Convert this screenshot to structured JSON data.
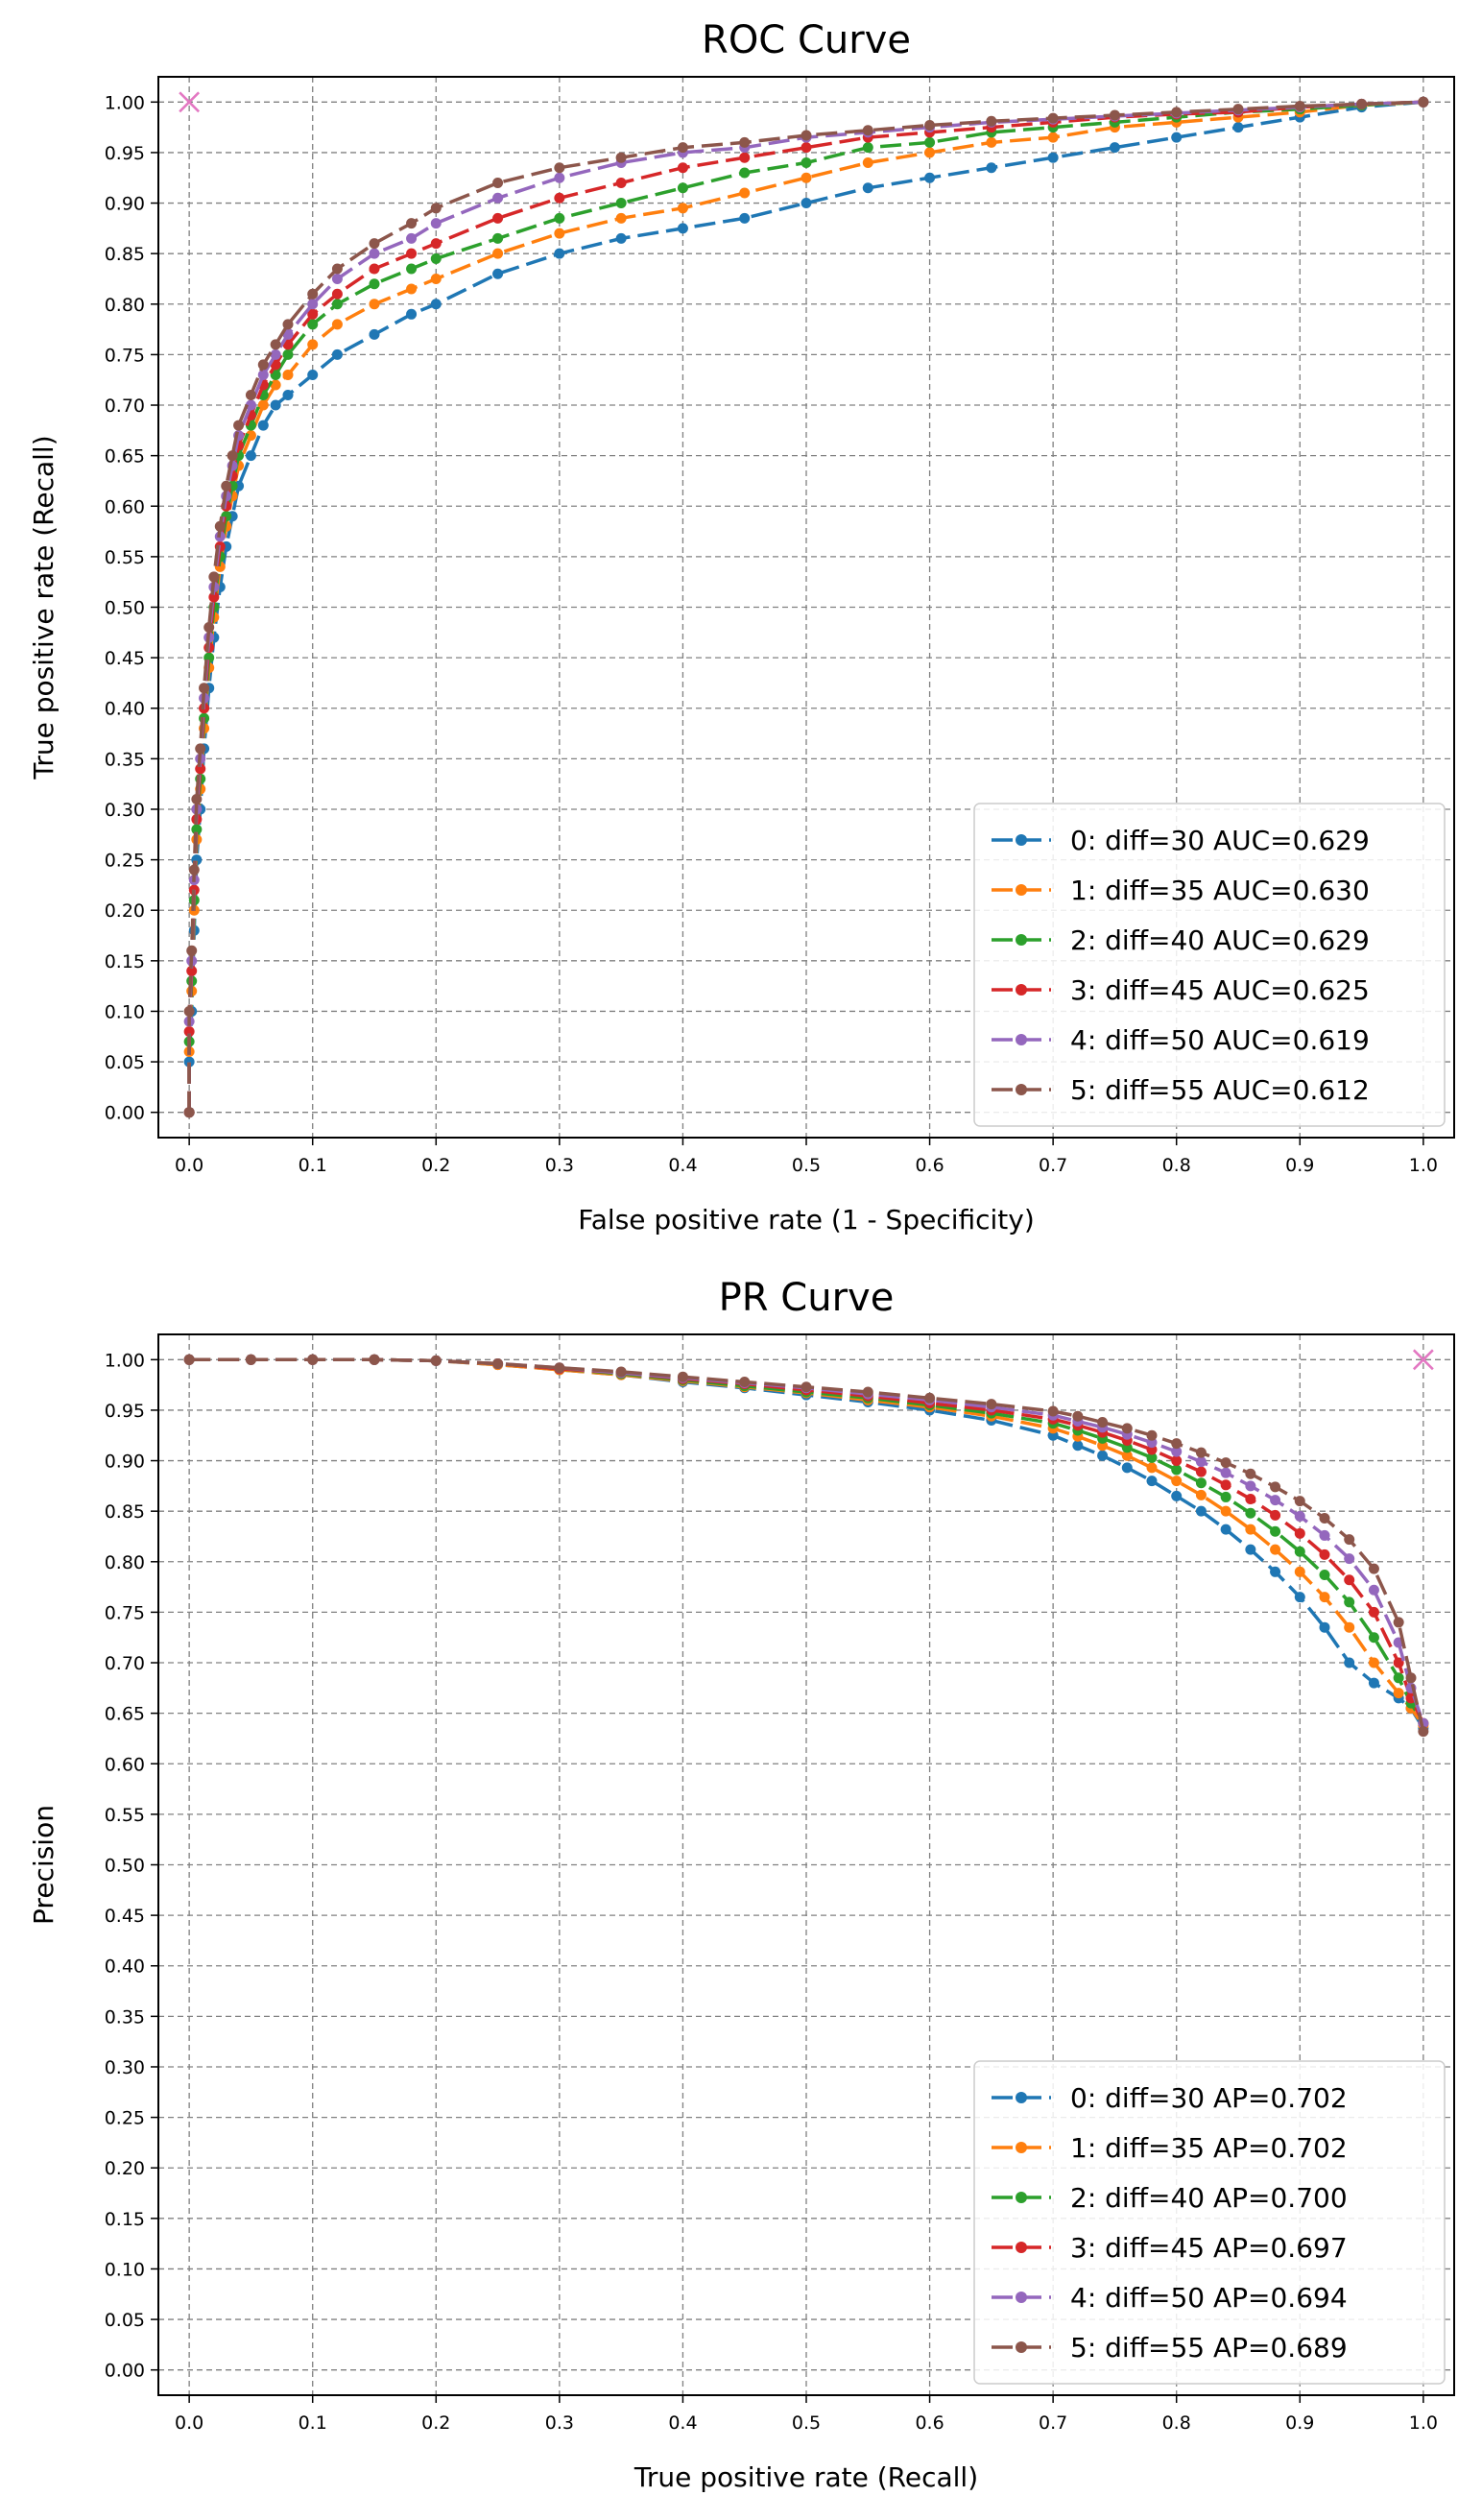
{
  "chart_data": [
    {
      "type": "line",
      "title": "ROC Curve",
      "xlabel": "False positive rate (1 - Specificity)",
      "ylabel": "True positive rate (Recall)",
      "xlim": [
        -0.025,
        1.025
      ],
      "ylim": [
        -0.025,
        1.025
      ],
      "xticks": [
        "0.0",
        "0.1",
        "0.2",
        "0.3",
        "0.4",
        "0.5",
        "0.6",
        "0.7",
        "0.8",
        "0.9",
        "1.0"
      ],
      "yticks": [
        "0.00",
        "0.05",
        "0.10",
        "0.15",
        "0.20",
        "0.25",
        "0.30",
        "0.35",
        "0.40",
        "0.45",
        "0.50",
        "0.55",
        "0.60",
        "0.65",
        "0.70",
        "0.75",
        "0.80",
        "0.85",
        "0.90",
        "0.95",
        "1.00"
      ],
      "grid": true,
      "legend_position": "lower-right",
      "marker": {
        "x": 0.0,
        "y": 1.0,
        "symbol": "x",
        "color": "#e377c2"
      },
      "series": [
        {
          "name": "0: diff=30 AUC=0.629",
          "color": "#1f77b4",
          "x": [
            0.0,
            0.0,
            0.002,
            0.004,
            0.006,
            0.009,
            0.012,
            0.016,
            0.02,
            0.025,
            0.03,
            0.035,
            0.04,
            0.05,
            0.06,
            0.07,
            0.08,
            0.1,
            0.12,
            0.15,
            0.18,
            0.2,
            0.25,
            0.3,
            0.35,
            0.4,
            0.45,
            0.5,
            0.55,
            0.6,
            0.65,
            0.7,
            0.75,
            0.8,
            0.85,
            0.9,
            0.95,
            1.0
          ],
          "y": [
            0.0,
            0.05,
            0.1,
            0.18,
            0.25,
            0.3,
            0.36,
            0.42,
            0.47,
            0.52,
            0.56,
            0.59,
            0.62,
            0.65,
            0.68,
            0.7,
            0.71,
            0.73,
            0.75,
            0.77,
            0.79,
            0.8,
            0.83,
            0.85,
            0.865,
            0.875,
            0.885,
            0.9,
            0.915,
            0.925,
            0.935,
            0.945,
            0.955,
            0.965,
            0.975,
            0.985,
            0.995,
            1.0
          ]
        },
        {
          "name": "1: diff=35 AUC=0.630",
          "color": "#ff7f0e",
          "x": [
            0.0,
            0.0,
            0.002,
            0.004,
            0.006,
            0.009,
            0.012,
            0.016,
            0.02,
            0.025,
            0.03,
            0.035,
            0.04,
            0.05,
            0.06,
            0.07,
            0.08,
            0.1,
            0.12,
            0.15,
            0.18,
            0.2,
            0.25,
            0.3,
            0.35,
            0.4,
            0.45,
            0.5,
            0.55,
            0.6,
            0.65,
            0.7,
            0.75,
            0.8,
            0.85,
            0.9,
            0.95,
            1.0
          ],
          "y": [
            0.0,
            0.06,
            0.12,
            0.2,
            0.27,
            0.32,
            0.38,
            0.44,
            0.49,
            0.54,
            0.58,
            0.61,
            0.64,
            0.67,
            0.7,
            0.72,
            0.73,
            0.76,
            0.78,
            0.8,
            0.815,
            0.825,
            0.85,
            0.87,
            0.885,
            0.895,
            0.91,
            0.925,
            0.94,
            0.95,
            0.96,
            0.965,
            0.975,
            0.98,
            0.985,
            0.99,
            0.997,
            1.0
          ]
        },
        {
          "name": "2: diff=40 AUC=0.629",
          "color": "#2ca02c",
          "x": [
            0.0,
            0.0,
            0.002,
            0.004,
            0.006,
            0.009,
            0.012,
            0.016,
            0.02,
            0.025,
            0.03,
            0.035,
            0.04,
            0.05,
            0.06,
            0.07,
            0.08,
            0.1,
            0.12,
            0.15,
            0.18,
            0.2,
            0.25,
            0.3,
            0.35,
            0.4,
            0.45,
            0.5,
            0.55,
            0.6,
            0.65,
            0.7,
            0.75,
            0.8,
            0.85,
            0.9,
            0.95,
            1.0
          ],
          "y": [
            0.0,
            0.07,
            0.13,
            0.21,
            0.28,
            0.33,
            0.39,
            0.45,
            0.5,
            0.55,
            0.59,
            0.62,
            0.65,
            0.68,
            0.71,
            0.73,
            0.75,
            0.78,
            0.8,
            0.82,
            0.835,
            0.845,
            0.865,
            0.885,
            0.9,
            0.915,
            0.93,
            0.94,
            0.955,
            0.96,
            0.97,
            0.975,
            0.98,
            0.985,
            0.99,
            0.993,
            0.997,
            1.0
          ]
        },
        {
          "name": "3: diff=45 AUC=0.625",
          "color": "#d62728",
          "x": [
            0.0,
            0.0,
            0.002,
            0.004,
            0.006,
            0.009,
            0.012,
            0.016,
            0.02,
            0.025,
            0.03,
            0.035,
            0.04,
            0.05,
            0.06,
            0.07,
            0.08,
            0.1,
            0.12,
            0.15,
            0.18,
            0.2,
            0.25,
            0.3,
            0.35,
            0.4,
            0.45,
            0.5,
            0.55,
            0.6,
            0.65,
            0.7,
            0.75,
            0.8,
            0.85,
            0.9,
            0.95,
            1.0
          ],
          "y": [
            0.0,
            0.08,
            0.14,
            0.22,
            0.29,
            0.34,
            0.4,
            0.46,
            0.51,
            0.56,
            0.6,
            0.63,
            0.66,
            0.69,
            0.72,
            0.74,
            0.76,
            0.79,
            0.81,
            0.835,
            0.85,
            0.86,
            0.885,
            0.905,
            0.92,
            0.935,
            0.945,
            0.955,
            0.965,
            0.97,
            0.975,
            0.98,
            0.985,
            0.988,
            0.99,
            0.995,
            0.998,
            1.0
          ]
        },
        {
          "name": "4: diff=50 AUC=0.619",
          "color": "#9467bd",
          "x": [
            0.0,
            0.0,
            0.002,
            0.004,
            0.006,
            0.009,
            0.012,
            0.016,
            0.02,
            0.025,
            0.03,
            0.035,
            0.04,
            0.05,
            0.06,
            0.07,
            0.08,
            0.1,
            0.12,
            0.15,
            0.18,
            0.2,
            0.25,
            0.3,
            0.35,
            0.4,
            0.45,
            0.5,
            0.55,
            0.6,
            0.65,
            0.7,
            0.75,
            0.8,
            0.85,
            0.9,
            0.95,
            1.0
          ],
          "y": [
            0.0,
            0.09,
            0.15,
            0.23,
            0.3,
            0.35,
            0.41,
            0.47,
            0.52,
            0.57,
            0.61,
            0.64,
            0.67,
            0.7,
            0.73,
            0.75,
            0.77,
            0.8,
            0.825,
            0.85,
            0.865,
            0.88,
            0.905,
            0.925,
            0.94,
            0.95,
            0.955,
            0.965,
            0.97,
            0.975,
            0.98,
            0.983,
            0.986,
            0.989,
            0.992,
            0.995,
            0.998,
            1.0
          ]
        },
        {
          "name": "5: diff=55 AUC=0.612",
          "color": "#8c564b",
          "x": [
            0.0,
            0.0,
            0.002,
            0.004,
            0.006,
            0.009,
            0.012,
            0.016,
            0.02,
            0.025,
            0.03,
            0.035,
            0.04,
            0.05,
            0.06,
            0.07,
            0.08,
            0.1,
            0.12,
            0.15,
            0.18,
            0.2,
            0.25,
            0.3,
            0.35,
            0.4,
            0.45,
            0.5,
            0.55,
            0.6,
            0.65,
            0.7,
            0.75,
            0.8,
            0.85,
            0.9,
            0.95,
            1.0
          ],
          "y": [
            0.0,
            0.1,
            0.16,
            0.24,
            0.31,
            0.36,
            0.42,
            0.48,
            0.53,
            0.58,
            0.62,
            0.65,
            0.68,
            0.71,
            0.74,
            0.76,
            0.78,
            0.81,
            0.835,
            0.86,
            0.88,
            0.895,
            0.92,
            0.935,
            0.945,
            0.955,
            0.96,
            0.967,
            0.972,
            0.977,
            0.981,
            0.984,
            0.987,
            0.99,
            0.993,
            0.996,
            0.998,
            1.0
          ]
        }
      ]
    },
    {
      "type": "line",
      "title": "PR Curve",
      "xlabel": "True positive rate (Recall)",
      "ylabel": "Precision",
      "xlim": [
        -0.025,
        1.025
      ],
      "ylim": [
        -0.025,
        1.025
      ],
      "xticks": [
        "0.0",
        "0.1",
        "0.2",
        "0.3",
        "0.4",
        "0.5",
        "0.6",
        "0.7",
        "0.8",
        "0.9",
        "1.0"
      ],
      "yticks": [
        "0.00",
        "0.05",
        "0.10",
        "0.15",
        "0.20",
        "0.25",
        "0.30",
        "0.35",
        "0.40",
        "0.45",
        "0.50",
        "0.55",
        "0.60",
        "0.65",
        "0.70",
        "0.75",
        "0.80",
        "0.85",
        "0.90",
        "0.95",
        "1.00"
      ],
      "grid": true,
      "legend_position": "lower-right",
      "marker": {
        "x": 1.0,
        "y": 1.0,
        "symbol": "x",
        "color": "#e377c2"
      },
      "series": [
        {
          "name": "0: diff=30 AP=0.702",
          "color": "#1f77b4",
          "x": [
            0.0,
            0.05,
            0.1,
            0.15,
            0.2,
            0.25,
            0.3,
            0.35,
            0.4,
            0.45,
            0.5,
            0.55,
            0.6,
            0.65,
            0.7,
            0.72,
            0.74,
            0.76,
            0.78,
            0.8,
            0.82,
            0.84,
            0.86,
            0.88,
            0.9,
            0.92,
            0.94,
            0.96,
            0.98,
            0.99,
            1.0
          ],
          "y": [
            1.0,
            1.0,
            1.0,
            1.0,
            0.999,
            0.995,
            0.99,
            0.985,
            0.978,
            0.972,
            0.965,
            0.958,
            0.95,
            0.94,
            0.925,
            0.915,
            0.905,
            0.893,
            0.88,
            0.865,
            0.85,
            0.832,
            0.812,
            0.79,
            0.765,
            0.735,
            0.7,
            0.68,
            0.665,
            0.655,
            0.635
          ]
        },
        {
          "name": "1: diff=35 AP=0.702",
          "color": "#ff7f0e",
          "x": [
            0.0,
            0.05,
            0.1,
            0.15,
            0.2,
            0.25,
            0.3,
            0.35,
            0.4,
            0.45,
            0.5,
            0.55,
            0.6,
            0.65,
            0.7,
            0.72,
            0.74,
            0.76,
            0.78,
            0.8,
            0.82,
            0.84,
            0.86,
            0.88,
            0.9,
            0.92,
            0.94,
            0.96,
            0.98,
            0.99,
            1.0
          ],
          "y": [
            1.0,
            1.0,
            1.0,
            1.0,
            0.999,
            0.995,
            0.99,
            0.985,
            0.979,
            0.973,
            0.967,
            0.96,
            0.953,
            0.944,
            0.932,
            0.924,
            0.915,
            0.905,
            0.893,
            0.88,
            0.866,
            0.85,
            0.832,
            0.812,
            0.79,
            0.765,
            0.735,
            0.7,
            0.67,
            0.655,
            0.638
          ]
        },
        {
          "name": "2: diff=40 AP=0.700",
          "color": "#2ca02c",
          "x": [
            0.0,
            0.05,
            0.1,
            0.15,
            0.2,
            0.25,
            0.3,
            0.35,
            0.4,
            0.45,
            0.5,
            0.55,
            0.6,
            0.65,
            0.7,
            0.72,
            0.74,
            0.76,
            0.78,
            0.8,
            0.82,
            0.84,
            0.86,
            0.88,
            0.9,
            0.92,
            0.94,
            0.96,
            0.98,
            0.99,
            1.0
          ],
          "y": [
            1.0,
            1.0,
            1.0,
            1.0,
            0.999,
            0.996,
            0.991,
            0.986,
            0.98,
            0.974,
            0.968,
            0.962,
            0.955,
            0.947,
            0.937,
            0.93,
            0.922,
            0.913,
            0.903,
            0.891,
            0.878,
            0.864,
            0.848,
            0.83,
            0.81,
            0.787,
            0.76,
            0.725,
            0.685,
            0.66,
            0.64
          ]
        },
        {
          "name": "3: diff=45 AP=0.697",
          "color": "#d62728",
          "x": [
            0.0,
            0.05,
            0.1,
            0.15,
            0.2,
            0.25,
            0.3,
            0.35,
            0.4,
            0.45,
            0.5,
            0.55,
            0.6,
            0.65,
            0.7,
            0.72,
            0.74,
            0.76,
            0.78,
            0.8,
            0.82,
            0.84,
            0.86,
            0.88,
            0.9,
            0.92,
            0.94,
            0.96,
            0.98,
            0.99,
            1.0
          ],
          "y": [
            1.0,
            1.0,
            1.0,
            1.0,
            0.999,
            0.996,
            0.991,
            0.987,
            0.981,
            0.976,
            0.97,
            0.964,
            0.957,
            0.95,
            0.941,
            0.935,
            0.928,
            0.92,
            0.911,
            0.9,
            0.889,
            0.876,
            0.862,
            0.846,
            0.828,
            0.807,
            0.782,
            0.75,
            0.7,
            0.665,
            0.64
          ]
        },
        {
          "name": "4: diff=50 AP=0.694",
          "color": "#9467bd",
          "x": [
            0.0,
            0.05,
            0.1,
            0.15,
            0.2,
            0.25,
            0.3,
            0.35,
            0.4,
            0.45,
            0.5,
            0.55,
            0.6,
            0.65,
            0.7,
            0.72,
            0.74,
            0.76,
            0.78,
            0.8,
            0.82,
            0.84,
            0.86,
            0.88,
            0.9,
            0.92,
            0.94,
            0.96,
            0.98,
            0.99,
            1.0
          ],
          "y": [
            1.0,
            1.0,
            1.0,
            1.0,
            0.999,
            0.996,
            0.992,
            0.987,
            0.982,
            0.977,
            0.972,
            0.966,
            0.96,
            0.953,
            0.945,
            0.939,
            0.933,
            0.926,
            0.918,
            0.909,
            0.899,
            0.888,
            0.875,
            0.861,
            0.845,
            0.826,
            0.803,
            0.772,
            0.72,
            0.675,
            0.64
          ]
        },
        {
          "name": "5: diff=55 AP=0.689",
          "color": "#8c564b",
          "x": [
            0.0,
            0.05,
            0.1,
            0.15,
            0.2,
            0.25,
            0.3,
            0.35,
            0.4,
            0.45,
            0.5,
            0.55,
            0.6,
            0.65,
            0.7,
            0.72,
            0.74,
            0.76,
            0.78,
            0.8,
            0.82,
            0.84,
            0.86,
            0.88,
            0.9,
            0.92,
            0.94,
            0.96,
            0.98,
            0.99,
            1.0
          ],
          "y": [
            1.0,
            1.0,
            1.0,
            1.0,
            0.999,
            0.996,
            0.992,
            0.988,
            0.983,
            0.978,
            0.973,
            0.968,
            0.962,
            0.956,
            0.949,
            0.944,
            0.938,
            0.932,
            0.925,
            0.917,
            0.908,
            0.898,
            0.887,
            0.874,
            0.86,
            0.843,
            0.822,
            0.793,
            0.74,
            0.685,
            0.632
          ]
        }
      ]
    }
  ]
}
